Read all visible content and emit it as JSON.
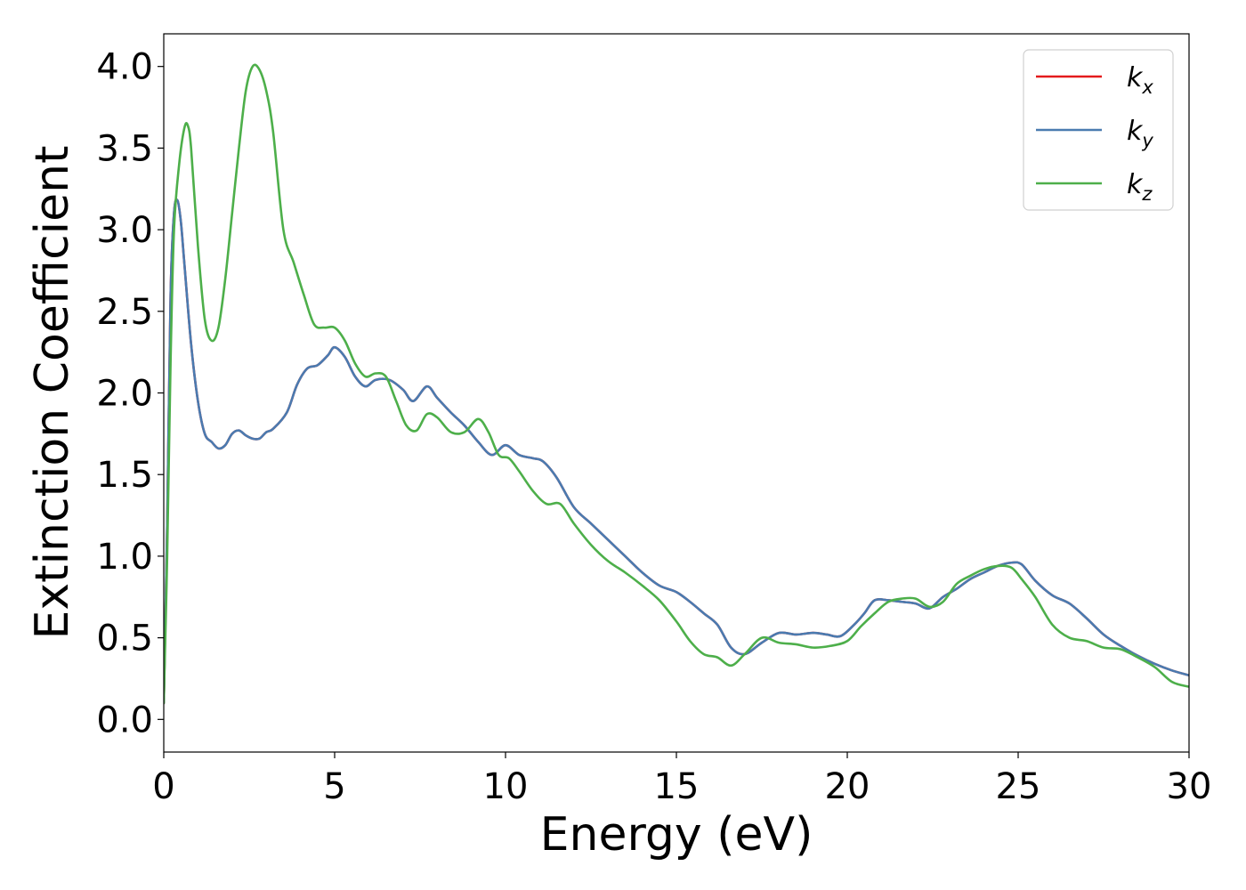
{
  "chart_data": {
    "type": "line",
    "title": "",
    "xlabel": "Energy (eV)",
    "ylabel": "Extinction Coefficient",
    "xlim": [
      0,
      30
    ],
    "ylim": [
      -0.2,
      4.2
    ],
    "xticks": [
      0,
      5,
      10,
      15,
      20,
      25,
      30
    ],
    "xtick_labels": [
      "0",
      "5",
      "10",
      "15",
      "20",
      "25",
      "30"
    ],
    "yticks": [
      0.0,
      0.5,
      1.0,
      1.5,
      2.0,
      2.5,
      3.0,
      3.5,
      4.0
    ],
    "ytick_labels": [
      "0.0",
      "0.5",
      "1.0",
      "1.5",
      "2.0",
      "2.5",
      "3.0",
      "3.5",
      "4.0"
    ],
    "grid": false,
    "legend_position": "top-right",
    "series": [
      {
        "name": "k_x",
        "legend_base": "k",
        "legend_sub": "x",
        "color": "#e41a1c",
        "x": [
          0.0,
          0.1,
          0.2,
          0.3,
          0.4,
          0.5,
          0.6,
          0.8,
          1.0,
          1.2,
          1.4,
          1.6,
          1.8,
          2.0,
          2.2,
          2.4,
          2.6,
          2.8,
          3.0,
          3.2,
          3.6,
          3.9,
          4.2,
          4.5,
          4.8,
          5.0,
          5.3,
          5.6,
          5.9,
          6.2,
          6.6,
          7.0,
          7.3,
          7.7,
          8.0,
          8.4,
          8.8,
          9.2,
          9.6,
          10.0,
          10.4,
          10.8,
          11.1,
          11.5,
          12.0,
          12.5,
          13.0,
          13.5,
          14.0,
          14.5,
          15.0,
          15.4,
          15.8,
          16.2,
          16.6,
          17.0,
          17.5,
          18.0,
          18.5,
          19.0,
          19.4,
          19.8,
          20.2,
          20.5,
          20.8,
          21.2,
          21.6,
          22.0,
          22.4,
          22.8,
          23.2,
          23.6,
          24.0,
          24.4,
          24.8,
          25.1,
          25.5,
          26.0,
          26.5,
          27.0,
          27.5,
          28.0,
          28.5,
          29.0,
          29.5,
          30.0
        ],
        "y": [
          0.1,
          1.2,
          2.6,
          3.1,
          3.18,
          3.05,
          2.8,
          2.3,
          1.95,
          1.75,
          1.7,
          1.66,
          1.68,
          1.75,
          1.77,
          1.74,
          1.72,
          1.72,
          1.76,
          1.78,
          1.88,
          2.05,
          2.15,
          2.17,
          2.23,
          2.28,
          2.22,
          2.1,
          2.04,
          2.08,
          2.08,
          2.02,
          1.95,
          2.04,
          1.97,
          1.88,
          1.8,
          1.7,
          1.62,
          1.68,
          1.62,
          1.6,
          1.58,
          1.48,
          1.3,
          1.2,
          1.1,
          1.0,
          0.9,
          0.82,
          0.78,
          0.72,
          0.65,
          0.58,
          0.44,
          0.4,
          0.47,
          0.53,
          0.52,
          0.53,
          0.52,
          0.51,
          0.58,
          0.65,
          0.73,
          0.73,
          0.72,
          0.71,
          0.68,
          0.75,
          0.8,
          0.86,
          0.9,
          0.94,
          0.96,
          0.95,
          0.85,
          0.76,
          0.71,
          0.62,
          0.52,
          0.45,
          0.39,
          0.34,
          0.3,
          0.27
        ]
      },
      {
        "name": "k_y",
        "legend_base": "k",
        "legend_sub": "y",
        "color": "#4a7bb0",
        "x": [
          0.0,
          0.1,
          0.2,
          0.3,
          0.4,
          0.5,
          0.6,
          0.8,
          1.0,
          1.2,
          1.4,
          1.6,
          1.8,
          2.0,
          2.2,
          2.4,
          2.6,
          2.8,
          3.0,
          3.2,
          3.6,
          3.9,
          4.2,
          4.5,
          4.8,
          5.0,
          5.3,
          5.6,
          5.9,
          6.2,
          6.6,
          7.0,
          7.3,
          7.7,
          8.0,
          8.4,
          8.8,
          9.2,
          9.6,
          10.0,
          10.4,
          10.8,
          11.1,
          11.5,
          12.0,
          12.5,
          13.0,
          13.5,
          14.0,
          14.5,
          15.0,
          15.4,
          15.8,
          16.2,
          16.6,
          17.0,
          17.5,
          18.0,
          18.5,
          19.0,
          19.4,
          19.8,
          20.2,
          20.5,
          20.8,
          21.2,
          21.6,
          22.0,
          22.4,
          22.8,
          23.2,
          23.6,
          24.0,
          24.4,
          24.8,
          25.1,
          25.5,
          26.0,
          26.5,
          27.0,
          27.5,
          28.0,
          28.5,
          29.0,
          29.5,
          30.0
        ],
        "y": [
          0.1,
          1.2,
          2.6,
          3.1,
          3.18,
          3.05,
          2.8,
          2.3,
          1.95,
          1.75,
          1.7,
          1.66,
          1.68,
          1.75,
          1.77,
          1.74,
          1.72,
          1.72,
          1.76,
          1.78,
          1.88,
          2.05,
          2.15,
          2.17,
          2.23,
          2.28,
          2.22,
          2.1,
          2.04,
          2.08,
          2.08,
          2.02,
          1.95,
          2.04,
          1.97,
          1.88,
          1.8,
          1.7,
          1.62,
          1.68,
          1.62,
          1.6,
          1.58,
          1.48,
          1.3,
          1.2,
          1.1,
          1.0,
          0.9,
          0.82,
          0.78,
          0.72,
          0.65,
          0.58,
          0.44,
          0.4,
          0.47,
          0.53,
          0.52,
          0.53,
          0.52,
          0.51,
          0.58,
          0.65,
          0.73,
          0.73,
          0.72,
          0.71,
          0.68,
          0.75,
          0.8,
          0.86,
          0.9,
          0.94,
          0.96,
          0.95,
          0.85,
          0.76,
          0.71,
          0.62,
          0.52,
          0.45,
          0.39,
          0.34,
          0.3,
          0.27
        ]
      },
      {
        "name": "k_z",
        "legend_base": "k",
        "legend_sub": "z",
        "color": "#4daf4a",
        "x": [
          0.0,
          0.1,
          0.2,
          0.3,
          0.45,
          0.6,
          0.7,
          0.8,
          1.0,
          1.2,
          1.4,
          1.6,
          1.8,
          2.0,
          2.2,
          2.4,
          2.6,
          2.8,
          3.0,
          3.2,
          3.5,
          3.8,
          4.1,
          4.4,
          4.7,
          5.0,
          5.3,
          5.6,
          5.9,
          6.2,
          6.5,
          6.8,
          7.1,
          7.4,
          7.7,
          8.0,
          8.4,
          8.8,
          9.2,
          9.5,
          9.8,
          10.1,
          10.4,
          10.8,
          11.2,
          11.6,
          12.0,
          12.5,
          13.0,
          13.5,
          14.0,
          14.5,
          15.0,
          15.4,
          15.8,
          16.2,
          16.6,
          17.0,
          17.5,
          18.0,
          18.5,
          19.0,
          19.5,
          20.0,
          20.4,
          20.8,
          21.2,
          21.6,
          22.0,
          22.4,
          22.8,
          23.2,
          23.6,
          24.0,
          24.4,
          24.8,
          25.1,
          25.5,
          26.0,
          26.5,
          27.0,
          27.5,
          28.0,
          28.5,
          29.0,
          29.5,
          30.0
        ],
        "y": [
          0.1,
          1.0,
          2.2,
          3.0,
          3.4,
          3.62,
          3.64,
          3.5,
          2.9,
          2.45,
          2.32,
          2.4,
          2.7,
          3.1,
          3.5,
          3.85,
          4.0,
          3.98,
          3.85,
          3.6,
          3.0,
          2.8,
          2.6,
          2.42,
          2.4,
          2.4,
          2.32,
          2.18,
          2.1,
          2.12,
          2.1,
          1.95,
          1.8,
          1.77,
          1.87,
          1.85,
          1.76,
          1.76,
          1.84,
          1.76,
          1.62,
          1.6,
          1.52,
          1.4,
          1.32,
          1.32,
          1.2,
          1.07,
          0.97,
          0.9,
          0.82,
          0.73,
          0.6,
          0.48,
          0.4,
          0.38,
          0.33,
          0.4,
          0.5,
          0.47,
          0.46,
          0.44,
          0.45,
          0.48,
          0.57,
          0.65,
          0.72,
          0.74,
          0.74,
          0.69,
          0.72,
          0.83,
          0.88,
          0.92,
          0.94,
          0.93,
          0.86,
          0.75,
          0.58,
          0.5,
          0.48,
          0.44,
          0.43,
          0.38,
          0.32,
          0.23,
          0.2
        ]
      }
    ]
  }
}
